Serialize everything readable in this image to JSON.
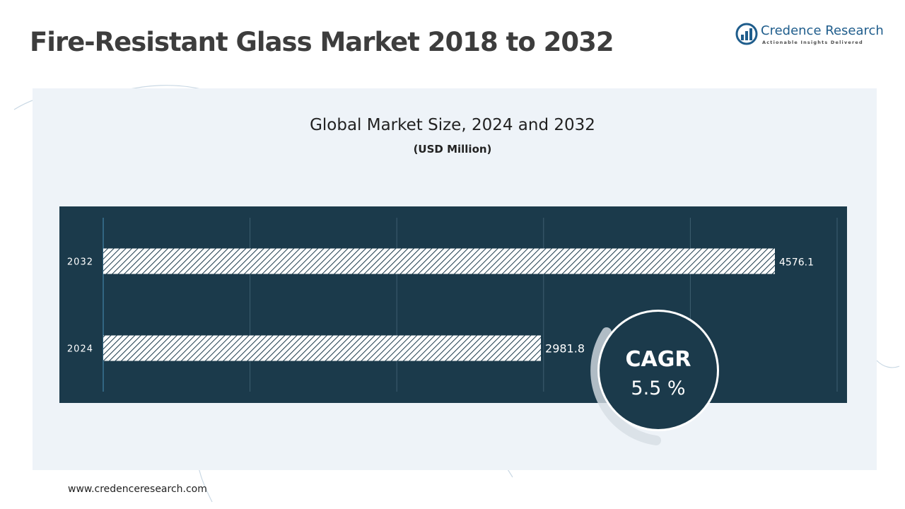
{
  "header": {
    "title": "Fire-Resistant Glass Market 2018 to 2032"
  },
  "logo": {
    "name": "Credence Research",
    "tagline": "Actionable Insights Delivered",
    "icon": "bar-chart-globe-icon"
  },
  "footer": {
    "url": "www.credenceresearch.com"
  },
  "cagr": {
    "label": "CAGR",
    "value": "5.5 %"
  },
  "colors": {
    "chart_background": "#1b3a4b",
    "panel_background": "#eef3f8",
    "bar_fill": "#ffffff",
    "bar_hatch": "#1b3a4b",
    "title_text": "#3d3d3d",
    "brand": "#1f5d8c"
  },
  "chart_data": {
    "type": "bar",
    "orientation": "horizontal",
    "title": "Global Market Size, 2024 and 2032",
    "subtitle": "(USD Million)",
    "categories": [
      "2032",
      "2024"
    ],
    "values": [
      4576.1,
      2981.8
    ],
    "value_labels": [
      "4576.1",
      "2981.8"
    ],
    "xlim": [
      0,
      5000
    ],
    "grid": true,
    "legend": "none"
  }
}
